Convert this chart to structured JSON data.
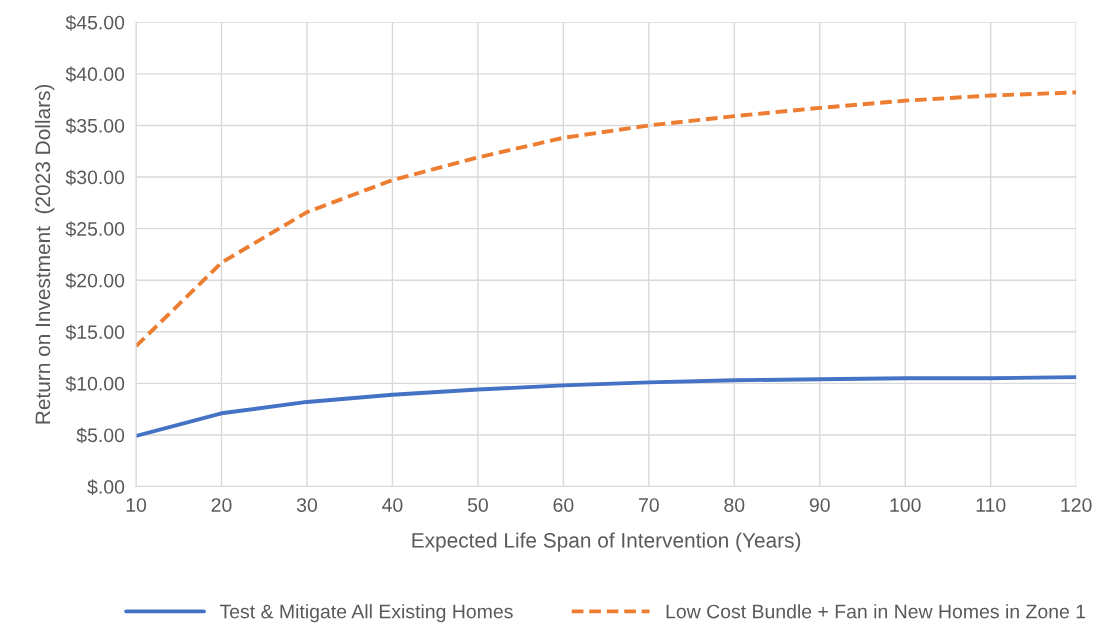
{
  "chart_data": {
    "type": "line",
    "xlabel": "Expected Life Span of Intervention (Years)",
    "ylabel": "Return on Investment  (2023 Dollars)",
    "x": [
      10,
      20,
      30,
      40,
      50,
      60,
      70,
      80,
      90,
      100,
      110,
      120
    ],
    "series": [
      {
        "name": "Test & Mitigate All Existing Homes",
        "color": "#4472c4",
        "line_style": "solid",
        "values": [
          4.9,
          7.1,
          8.2,
          8.9,
          9.4,
          9.8,
          10.1,
          10.3,
          10.4,
          10.5,
          10.5,
          10.6
        ]
      },
      {
        "name": "Low Cost Bundle + Fan in New Homes in Zone 1",
        "color": "#ed7d31",
        "line_style": "dashed",
        "values": [
          13.6,
          21.7,
          26.6,
          29.7,
          31.9,
          33.8,
          35.0,
          35.9,
          36.7,
          37.4,
          37.9,
          38.2
        ]
      }
    ],
    "xlim": [
      10,
      120
    ],
    "xticks": [
      10,
      20,
      30,
      40,
      50,
      60,
      70,
      80,
      90,
      100,
      110,
      120
    ],
    "ylim": [
      0,
      45
    ],
    "yticks": [
      {
        "value": 0,
        "label": "$.00"
      },
      {
        "value": 5,
        "label": "$5.00"
      },
      {
        "value": 10,
        "label": "$10.00"
      },
      {
        "value": 15,
        "label": "$15.00"
      },
      {
        "value": 20,
        "label": "$20.00"
      },
      {
        "value": 25,
        "label": "$25.00"
      },
      {
        "value": 30,
        "label": "$30.00"
      },
      {
        "value": 35,
        "label": "$35.00"
      },
      {
        "value": 40,
        "label": "$40.00"
      },
      {
        "value": 45,
        "label": "$45.00"
      }
    ],
    "grid": true,
    "legend": "bottom",
    "marker": "none"
  }
}
